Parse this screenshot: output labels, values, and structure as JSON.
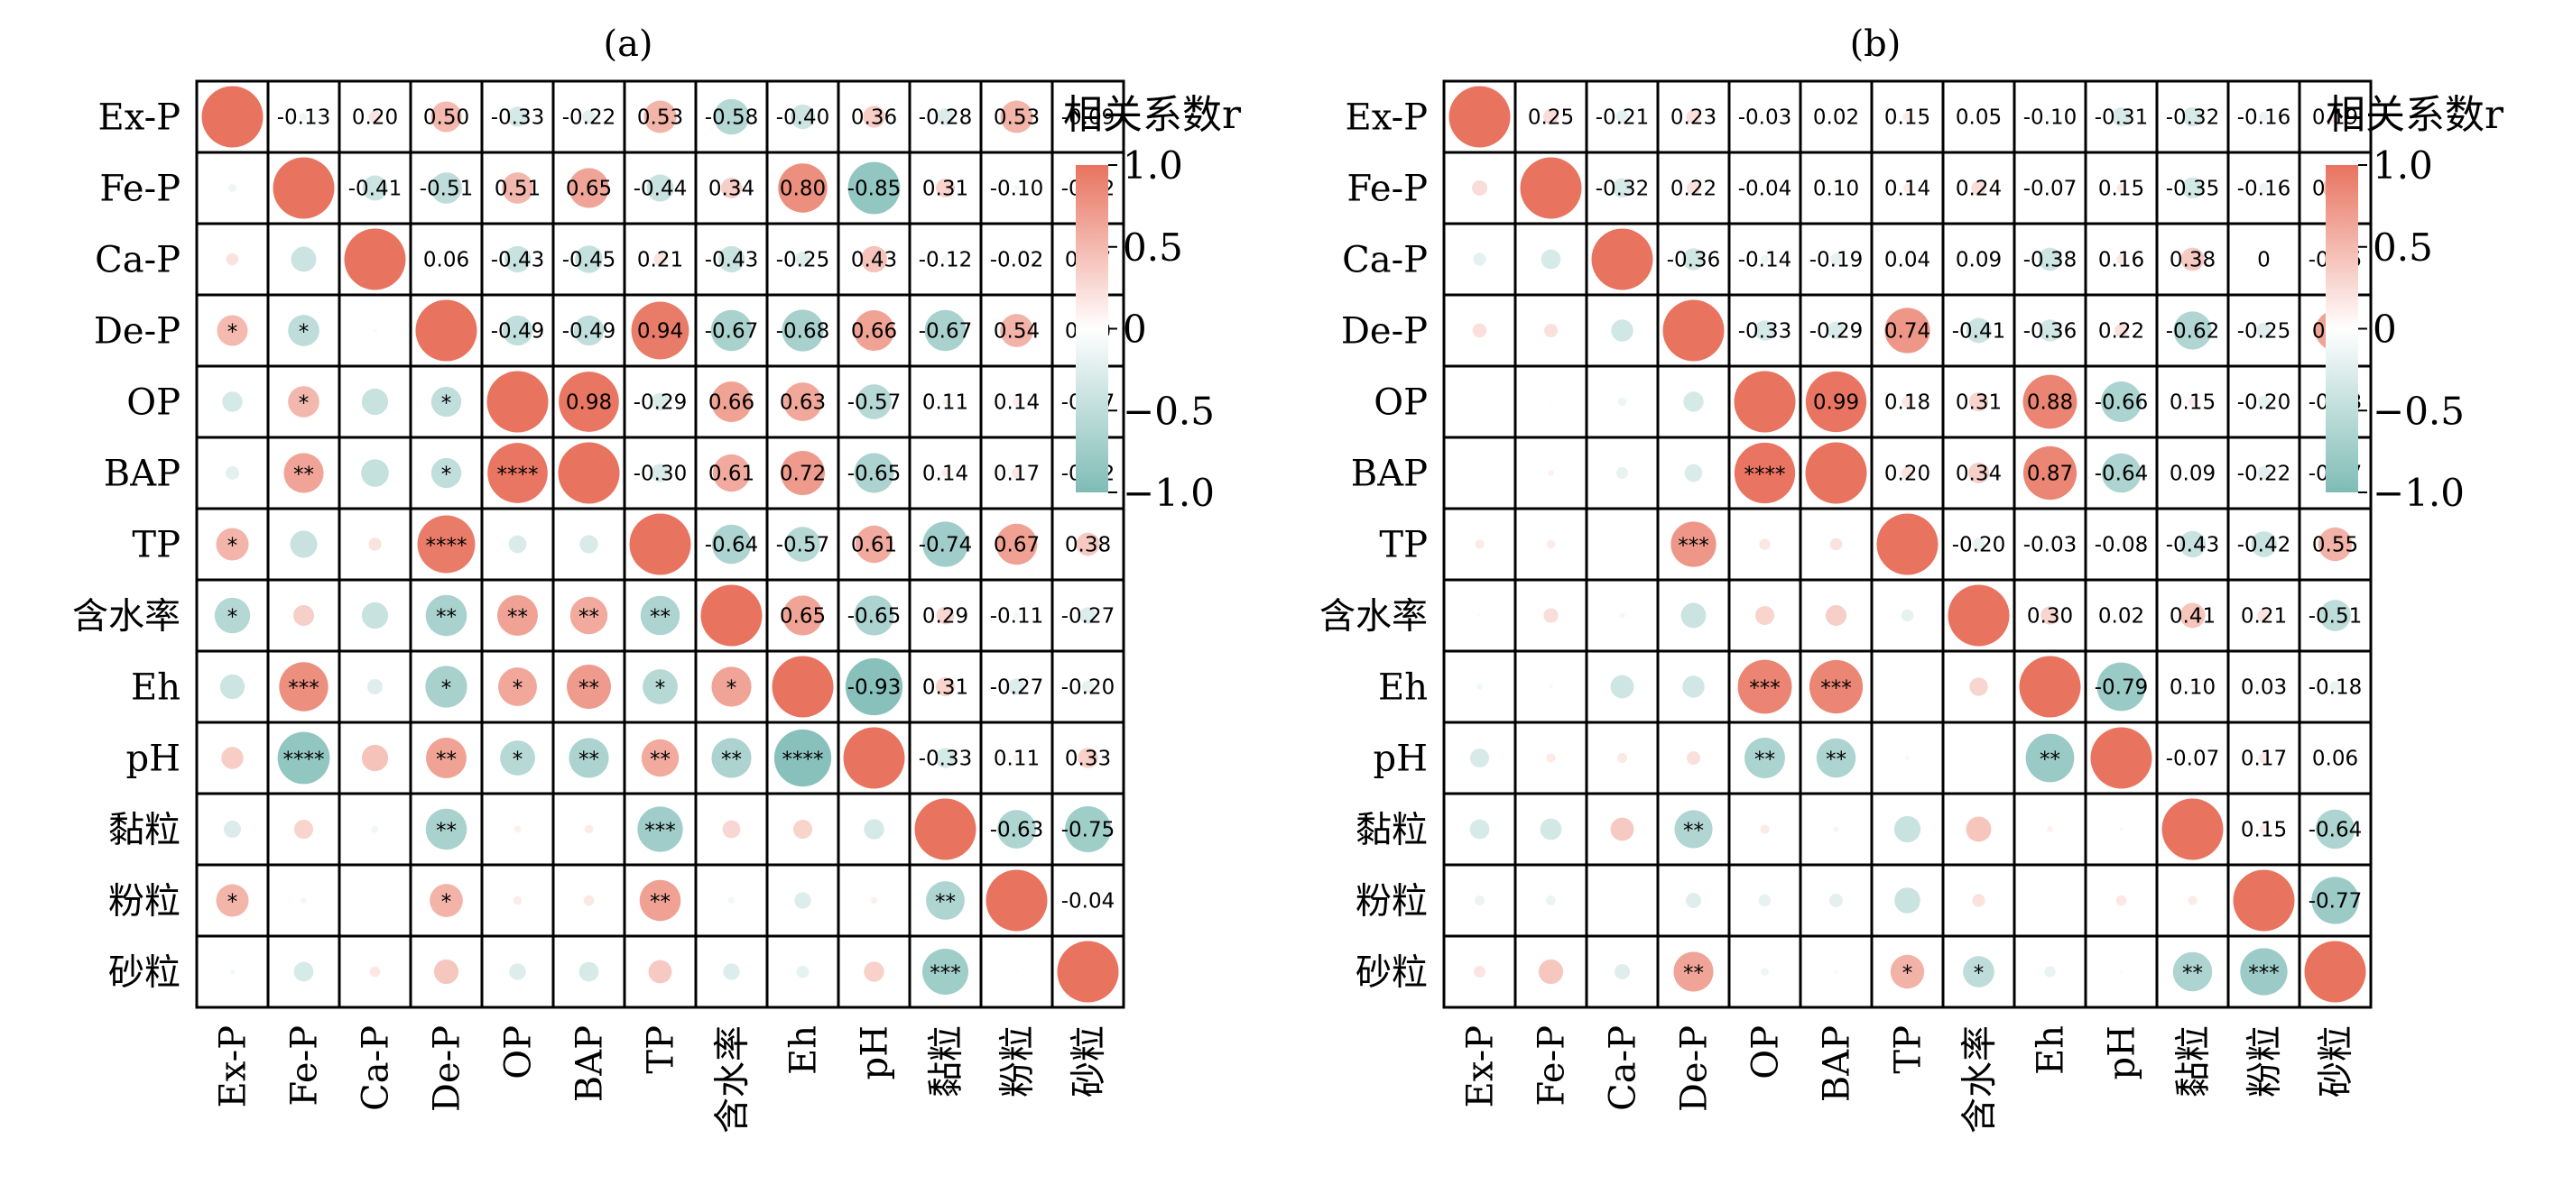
{
  "colors": {
    "positive": "#e8735f",
    "negative": "#7fbcb6",
    "zero": "#ffffff",
    "grid": "#000000",
    "text": "#000000"
  },
  "chart_data": [
    {
      "type": "heatmap",
      "title": "(a)",
      "labels": [
        "Ex-P",
        "Fe-P",
        "Ca-P",
        "De-P",
        "OP",
        "BAP",
        "TP",
        "含水率",
        "Eh",
        "pH",
        "黏粒",
        "粉粒",
        "砂粒"
      ],
      "colorbar": {
        "label": "相关系数r",
        "range": [
          -1,
          1
        ],
        "ticks": [
          "1.0",
          "0.5",
          "0",
          "−0.5",
          "−1.0"
        ]
      },
      "upper_r": [
        [
          null,
          -0.13,
          0.2,
          0.5,
          -0.33,
          -0.22,
          0.53,
          -0.58,
          -0.4,
          0.36,
          -0.28,
          0.53,
          -0.09
        ],
        [
          null,
          null,
          -0.41,
          -0.51,
          0.51,
          0.65,
          -0.44,
          0.34,
          0.8,
          -0.85,
          0.31,
          -0.1,
          -0.32
        ],
        [
          null,
          null,
          null,
          0.06,
          -0.43,
          -0.45,
          0.21,
          -0.43,
          -0.25,
          0.43,
          -0.12,
          -0.02,
          0.17
        ],
        [
          null,
          null,
          null,
          null,
          -0.49,
          -0.49,
          0.94,
          -0.67,
          -0.68,
          0.66,
          -0.67,
          0.54,
          0.4
        ],
        [
          null,
          null,
          null,
          null,
          null,
          0.98,
          -0.29,
          0.66,
          0.63,
          -0.57,
          0.11,
          0.14,
          -0.27
        ],
        [
          null,
          null,
          null,
          null,
          null,
          null,
          -0.3,
          0.61,
          0.72,
          -0.65,
          0.14,
          0.17,
          -0.32
        ],
        [
          null,
          null,
          null,
          null,
          null,
          null,
          null,
          -0.64,
          -0.57,
          0.61,
          -0.74,
          0.67,
          0.38
        ],
        [
          null,
          null,
          null,
          null,
          null,
          null,
          null,
          null,
          0.65,
          -0.65,
          0.29,
          -0.11,
          -0.27
        ],
        [
          null,
          null,
          null,
          null,
          null,
          null,
          null,
          null,
          null,
          -0.93,
          0.31,
          -0.27,
          -0.2
        ],
        [
          null,
          null,
          null,
          null,
          null,
          null,
          null,
          null,
          null,
          null,
          -0.33,
          0.11,
          0.33
        ],
        [
          null,
          null,
          null,
          null,
          null,
          null,
          null,
          null,
          null,
          null,
          null,
          -0.63,
          -0.75
        ],
        [
          null,
          null,
          null,
          null,
          null,
          null,
          null,
          null,
          null,
          null,
          null,
          null,
          -0.04
        ],
        [
          null,
          null,
          null,
          null,
          null,
          null,
          null,
          null,
          null,
          null,
          null,
          null,
          null
        ]
      ],
      "upper_labels": [
        [
          "",
          "-0.13",
          "0.20",
          "0.50",
          "-0.33",
          "-0.22",
          "0.53",
          "-0.58",
          "-0.40",
          "0.36",
          "-0.28",
          "0.53",
          "-0.09"
        ],
        [
          "",
          "",
          "-0.41",
          "-0.51",
          "0.51",
          "0.65",
          "-0.44",
          "0.34",
          "0.80",
          "-0.85",
          "0.31",
          "-0.10",
          "-0.32"
        ],
        [
          "",
          "",
          "",
          "0.06",
          "-0.43",
          "-0.45",
          "0.21",
          "-0.43",
          "-0.25",
          "0.43",
          "-0.12",
          "-0.02",
          "0.17"
        ],
        [
          "",
          "",
          "",
          "",
          "-0.49",
          "-0.49",
          "0.94",
          "-0.67",
          "-0.68",
          "0.66",
          "-0.67",
          "0.54",
          "0.40"
        ],
        [
          "",
          "",
          "",
          "",
          "",
          "0.98",
          "-0.29",
          "0.66",
          "0.63",
          "-0.57",
          "0.11",
          "0.14",
          "-0.27"
        ],
        [
          "",
          "",
          "",
          "",
          "",
          "",
          "-0.30",
          "0.61",
          "0.72",
          "-0.65",
          "0.14",
          "0.17",
          "-0.32"
        ],
        [
          "",
          "",
          "",
          "",
          "",
          "",
          "",
          "-0.64",
          "-0.57",
          "0.61",
          "-0.74",
          "0.67",
          "0.38"
        ],
        [
          "",
          "",
          "",
          "",
          "",
          "",
          "",
          "",
          "0.65",
          "-0.65",
          "0.29",
          "-0.11",
          "-0.27"
        ],
        [
          "",
          "",
          "",
          "",
          "",
          "",
          "",
          "",
          "",
          "-0.93",
          "0.31",
          "-0.27",
          "-0.20"
        ],
        [
          "",
          "",
          "",
          "",
          "",
          "",
          "",
          "",
          "",
          "",
          "-0.33",
          "0.11",
          "0.33"
        ],
        [
          "",
          "",
          "",
          "",
          "",
          "",
          "",
          "",
          "",
          "",
          "",
          "-0.63",
          "-0.75"
        ],
        [
          "",
          "",
          "",
          "",
          "",
          "",
          "",
          "",
          "",
          "",
          "",
          "",
          "-0.04"
        ],
        [
          "",
          "",
          "",
          "",
          "",
          "",
          "",
          "",
          "",
          "",
          "",
          "",
          ""
        ]
      ],
      "lower_stars": [
        [
          "",
          "",
          "",
          "",
          "",
          "",
          "",
          "",
          "",
          "",
          "",
          "",
          ""
        ],
        [
          "",
          "",
          "",
          "",
          "",
          "",
          "",
          "",
          "",
          "",
          "",
          "",
          ""
        ],
        [
          "",
          "",
          "",
          "",
          "",
          "",
          "",
          "",
          "",
          "",
          "",
          "",
          ""
        ],
        [
          "*",
          "*",
          "",
          "",
          "",
          "",
          "",
          "",
          "",
          "",
          "",
          "",
          ""
        ],
        [
          "",
          "*",
          "",
          "*",
          "",
          "",
          "",
          "",
          "",
          "",
          "",
          "",
          ""
        ],
        [
          "",
          "**",
          "",
          "*",
          "****",
          "",
          "",
          "",
          "",
          "",
          "",
          "",
          ""
        ],
        [
          "*",
          "",
          "",
          "****",
          "",
          "",
          "",
          "",
          "",
          "",
          "",
          "",
          ""
        ],
        [
          "*",
          "",
          "",
          "**",
          "**",
          "**",
          "**",
          "",
          "",
          "",
          "",
          "",
          ""
        ],
        [
          "",
          "***",
          "",
          "*",
          "*",
          "**",
          "*",
          "*",
          "",
          "",
          "",
          "",
          ""
        ],
        [
          "",
          "****",
          "",
          "**",
          "*",
          "**",
          "**",
          "**",
          "****",
          "",
          "",
          "",
          ""
        ],
        [
          "",
          "",
          "",
          "**",
          "",
          "",
          "***",
          "",
          "",
          "",
          "",
          "",
          ""
        ],
        [
          "*",
          "",
          "",
          "*",
          "",
          "",
          "**",
          "",
          "",
          "",
          "**",
          "",
          ""
        ],
        [
          "",
          "",
          "",
          "",
          "",
          "",
          "",
          "",
          "",
          "",
          "***",
          "",
          ""
        ]
      ]
    },
    {
      "type": "heatmap",
      "title": "(b)",
      "labels": [
        "Ex-P",
        "Fe-P",
        "Ca-P",
        "De-P",
        "OP",
        "BAP",
        "TP",
        "含水率",
        "Eh",
        "pH",
        "黏粒",
        "粉粒",
        "砂粒"
      ],
      "colorbar": {
        "label": "相关系数r",
        "range": [
          -1,
          1
        ],
        "ticks": [
          "1.0",
          "0.5",
          "0",
          "−0.5",
          "−1.0"
        ]
      },
      "upper_r": [
        [
          null,
          0.25,
          -0.21,
          0.23,
          -0.03,
          0.02,
          0.15,
          0.05,
          -0.1,
          -0.31,
          -0.32,
          -0.16,
          0.19
        ],
        [
          null,
          null,
          -0.32,
          0.22,
          -0.04,
          0.1,
          0.14,
          0.24,
          -0.07,
          0.15,
          -0.35,
          -0.16,
          0.4
        ],
        [
          null,
          null,
          null,
          -0.36,
          -0.14,
          -0.19,
          0.04,
          0.09,
          -0.38,
          0.16,
          0.38,
          0,
          -0.25
        ],
        [
          null,
          null,
          null,
          null,
          -0.33,
          -0.29,
          0.74,
          -0.41,
          -0.36,
          0.22,
          -0.62,
          -0.25,
          0.65
        ],
        [
          null,
          null,
          null,
          null,
          null,
          0.99,
          0.18,
          0.31,
          0.88,
          -0.66,
          0.15,
          -0.2,
          -0.13
        ],
        [
          null,
          null,
          null,
          null,
          null,
          null,
          0.2,
          0.34,
          0.87,
          -0.64,
          0.09,
          -0.22,
          -0.07
        ],
        [
          null,
          null,
          null,
          null,
          null,
          null,
          null,
          -0.2,
          -0.03,
          -0.08,
          -0.43,
          -0.42,
          0.55
        ],
        [
          null,
          null,
          null,
          null,
          null,
          null,
          null,
          null,
          0.3,
          0.02,
          0.41,
          0.21,
          -0.51
        ],
        [
          null,
          null,
          null,
          null,
          null,
          null,
          null,
          null,
          null,
          -0.79,
          0.1,
          0.03,
          -0.18
        ],
        [
          null,
          null,
          null,
          null,
          null,
          null,
          null,
          null,
          null,
          null,
          -0.07,
          0.17,
          0.06
        ],
        [
          null,
          null,
          null,
          null,
          null,
          null,
          null,
          null,
          null,
          null,
          null,
          0.15,
          -0.64
        ],
        [
          null,
          null,
          null,
          null,
          null,
          null,
          null,
          null,
          null,
          null,
          null,
          null,
          -0.77
        ],
        [
          null,
          null,
          null,
          null,
          null,
          null,
          null,
          null,
          null,
          null,
          null,
          null,
          null
        ]
      ],
      "upper_labels": [
        [
          "",
          "0.25",
          "-0.21",
          "0.23",
          "-0.03",
          "0.02",
          "0.15",
          "0.05",
          "-0.10",
          "-0.31",
          "-0.32",
          "-0.16",
          "0.19"
        ],
        [
          "",
          "",
          "-0.32",
          "0.22",
          "-0.04",
          "0.10",
          "0.14",
          "0.24",
          "-0.07",
          "0.15",
          "-0.35",
          "-0.16",
          "0.40"
        ],
        [
          "",
          "",
          "",
          "-0.36",
          "-0.14",
          "-0.19",
          "0.04",
          "0.09",
          "-0.38",
          "0.16",
          "0.38",
          "0",
          "-0.25"
        ],
        [
          "",
          "",
          "",
          "",
          "-0.33",
          "-0.29",
          "0.74",
          "-0.41",
          "-0.36",
          "0.22",
          "-0.62",
          "-0.25",
          "0.65"
        ],
        [
          "",
          "",
          "",
          "",
          "",
          "0.99",
          "0.18",
          "0.31",
          "0.88",
          "-0.66",
          "0.15",
          "-0.20",
          "-0.13"
        ],
        [
          "",
          "",
          "",
          "",
          "",
          "",
          "0.20",
          "0.34",
          "0.87",
          "-0.64",
          "0.09",
          "-0.22",
          "-0.07"
        ],
        [
          "",
          "",
          "",
          "",
          "",
          "",
          "",
          "-0.20",
          "-0.03",
          "-0.08",
          "-0.43",
          "-0.42",
          "0.55"
        ],
        [
          "",
          "",
          "",
          "",
          "",
          "",
          "",
          "",
          "0.30",
          "0.02",
          "0.41",
          "0.21",
          "-0.51"
        ],
        [
          "",
          "",
          "",
          "",
          "",
          "",
          "",
          "",
          "",
          "-0.79",
          "0.10",
          "0.03",
          "-0.18"
        ],
        [
          "",
          "",
          "",
          "",
          "",
          "",
          "",
          "",
          "",
          "",
          "-0.07",
          "0.17",
          "0.06"
        ],
        [
          "",
          "",
          "",
          "",
          "",
          "",
          "",
          "",
          "",
          "",
          "",
          "0.15",
          "-0.64"
        ],
        [
          "",
          "",
          "",
          "",
          "",
          "",
          "",
          "",
          "",
          "",
          "",
          "",
          "-0.77"
        ],
        [
          "",
          "",
          "",
          "",
          "",
          "",
          "",
          "",
          "",
          "",
          "",
          "",
          ""
        ]
      ],
      "lower_stars": [
        [
          "",
          "",
          "",
          "",
          "",
          "",
          "",
          "",
          "",
          "",
          "",
          "",
          ""
        ],
        [
          "",
          "",
          "",
          "",
          "",
          "",
          "",
          "",
          "",
          "",
          "",
          "",
          ""
        ],
        [
          "",
          "",
          "",
          "",
          "",
          "",
          "",
          "",
          "",
          "",
          "",
          "",
          ""
        ],
        [
          "",
          "",
          "",
          "",
          "",
          "",
          "",
          "",
          "",
          "",
          "",
          "",
          ""
        ],
        [
          "",
          "",
          "",
          "",
          "",
          "",
          "",
          "",
          "",
          "",
          "",
          "",
          ""
        ],
        [
          "",
          "",
          "",
          "",
          "****",
          "",
          "",
          "",
          "",
          "",
          "",
          "",
          ""
        ],
        [
          "",
          "",
          "",
          "***",
          "",
          "",
          "",
          "",
          "",
          "",
          "",
          "",
          ""
        ],
        [
          "",
          "",
          "",
          "",
          "",
          "",
          "",
          "",
          "",
          "",
          "",
          "",
          ""
        ],
        [
          "",
          "",
          "",
          "",
          "***",
          "***",
          "",
          "",
          "",
          "",
          "",
          "",
          ""
        ],
        [
          "",
          "",
          "",
          "",
          "**",
          "**",
          "",
          "",
          "**",
          "",
          "",
          "",
          ""
        ],
        [
          "",
          "",
          "",
          "**",
          "",
          "",
          "",
          "",
          "",
          "",
          "",
          "",
          ""
        ],
        [
          "",
          "",
          "",
          "",
          "",
          "",
          "",
          "",
          "",
          "",
          "",
          "",
          ""
        ],
        [
          "",
          "",
          "",
          "**",
          "",
          "",
          "*",
          "*",
          "",
          "",
          "**",
          "***",
          ""
        ]
      ]
    }
  ]
}
